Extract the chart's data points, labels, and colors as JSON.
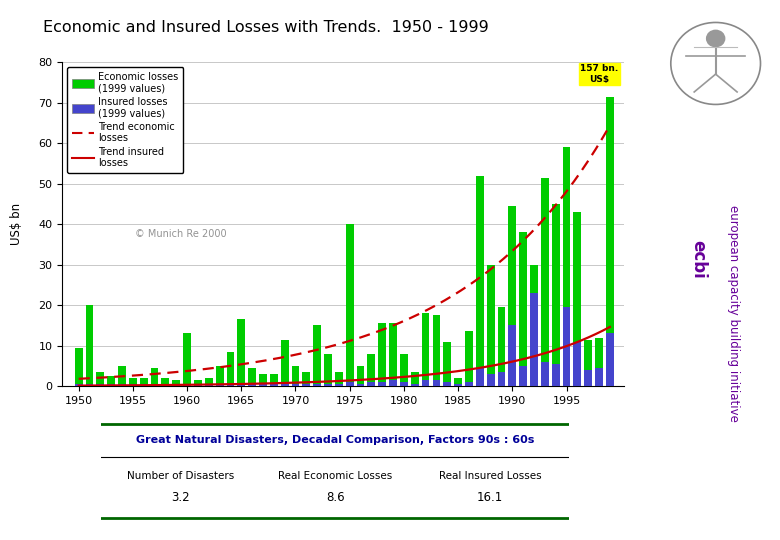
{
  "title": "Economic and Insured Losses with Trends.  1950 - 1999",
  "ylabel": "US$ bn",
  "background_color": "#ffffff",
  "chart_bg": "#ffffff",
  "ylim": [
    0,
    80
  ],
  "yticks": [
    0,
    10,
    20,
    30,
    40,
    50,
    60,
    70,
    80
  ],
  "years": [
    1950,
    1951,
    1952,
    1953,
    1954,
    1955,
    1956,
    1957,
    1958,
    1959,
    1960,
    1961,
    1962,
    1963,
    1964,
    1965,
    1966,
    1967,
    1968,
    1969,
    1970,
    1971,
    1972,
    1973,
    1974,
    1975,
    1976,
    1977,
    1978,
    1979,
    1980,
    1981,
    1982,
    1983,
    1984,
    1985,
    1986,
    1987,
    1988,
    1989,
    1990,
    1991,
    1992,
    1993,
    1994,
    1995,
    1996,
    1997,
    1998,
    1999
  ],
  "economic_losses": [
    9.5,
    20.0,
    3.5,
    2.5,
    5.0,
    2.0,
    2.0,
    4.5,
    2.0,
    1.5,
    13.0,
    1.5,
    2.0,
    5.0,
    8.5,
    16.5,
    4.5,
    3.0,
    3.0,
    11.5,
    5.0,
    3.5,
    15.0,
    8.0,
    3.5,
    40.0,
    5.0,
    8.0,
    15.5,
    15.5,
    8.0,
    3.5,
    18.0,
    17.5,
    11.0,
    2.0,
    13.5,
    52.0,
    30.0,
    19.5,
    44.5,
    38.0,
    30.0,
    51.5,
    45.0,
    59.0,
    43.0,
    11.5,
    12.0,
    71.5
  ],
  "insured_losses": [
    0.5,
    0.5,
    0.5,
    0.5,
    0.5,
    0.5,
    0.5,
    0.5,
    0.5,
    0.5,
    0.5,
    0.5,
    0.5,
    0.5,
    0.5,
    0.5,
    0.5,
    0.5,
    0.5,
    0.5,
    0.5,
    0.5,
    0.5,
    0.5,
    0.5,
    1.0,
    0.5,
    1.0,
    1.0,
    1.5,
    1.0,
    0.5,
    1.5,
    1.5,
    1.0,
    0.5,
    1.0,
    4.5,
    3.0,
    3.5,
    15.0,
    5.0,
    23.0,
    6.0,
    5.5,
    19.5,
    11.0,
    4.0,
    4.5,
    13.0
  ],
  "economic_color": "#00cc00",
  "insured_color": "#4444cc",
  "trend_economic_color": "#cc0000",
  "trend_insured_color": "#cc0000",
  "annotation_text": "157 bn.\nUS$",
  "annotation_bg": "#ffff00",
  "watermark": "© Munich Re 2000",
  "legend_economic": "Economic losses\n(1999 values)",
  "legend_insured": "Insured losses\n(1999 values)",
  "legend_trend_econ": "Trend economic\nlosses",
  "legend_trend_ins": "Trend insured\nlosses",
  "table_title": "Great Natural Disasters, Decadal Comparison, Factors 90s : 60s",
  "table_headers": [
    "Number of Disasters",
    "Real Economic Losses",
    "Real Insured Losses"
  ],
  "table_values": [
    "3.2",
    "8.6",
    "16.1"
  ],
  "ecbi_text_1": "european capacity building initiative",
  "ecbi_text_2": "ecbi",
  "title_color": "#000000",
  "table_title_color": "#000099",
  "table_border_color": "#006600",
  "ecbi_color": "#660099"
}
